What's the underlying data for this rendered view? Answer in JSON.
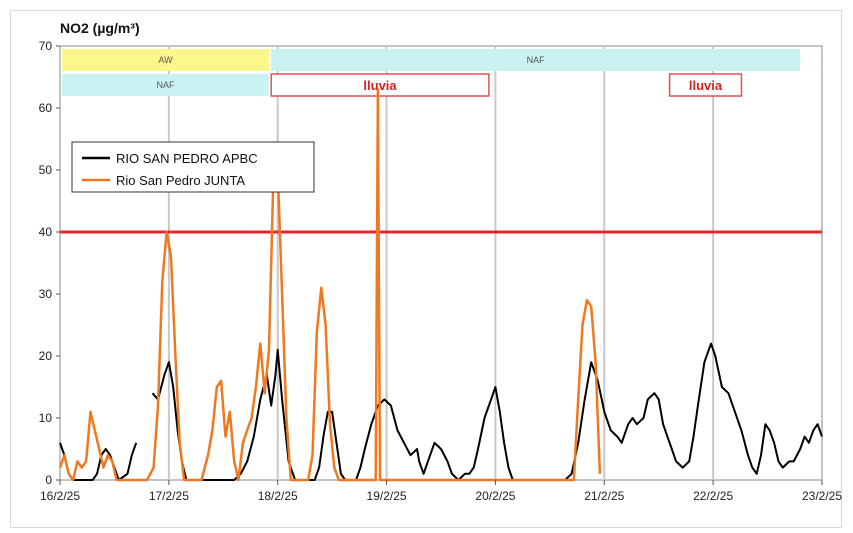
{
  "chart_data": {
    "type": "line",
    "title": "NO2  (µg/m³)",
    "xlabel": "",
    "ylabel": "",
    "ylim": [
      0,
      70
    ],
    "xlim": [
      0,
      7
    ],
    "yticks": [
      0,
      10,
      20,
      30,
      40,
      50,
      60,
      70
    ],
    "xticks": [
      {
        "x": 0,
        "label": "16/2/25"
      },
      {
        "x": 1,
        "label": "17/2/25"
      },
      {
        "x": 2,
        "label": "18/2/25"
      },
      {
        "x": 3,
        "label": "19/2/25"
      },
      {
        "x": 4,
        "label": "20/2/25"
      },
      {
        "x": 5,
        "label": "21/2/25"
      },
      {
        "x": 6,
        "label": "22/2/25"
      },
      {
        "x": 7,
        "label": "23/2/25"
      }
    ],
    "grid": "vertical",
    "legend_position": "upper-left",
    "threshold": {
      "value": 40,
      "color": "#e8242b"
    },
    "bands": [
      {
        "label": "AW",
        "x0": 0,
        "x1": 1.92,
        "row": 1,
        "color": "#fbf78a"
      },
      {
        "label": "NAF",
        "x0": 1.92,
        "x1": 6.8,
        "row": 1,
        "color": "#c9f3f3"
      },
      {
        "label": "NAF",
        "x0": 0,
        "x1": 1.92,
        "row": 2,
        "color": "#c9f3f3"
      }
    ],
    "annotations": [
      {
        "label": "lluvia",
        "x0": 1.94,
        "x1": 3.94
      },
      {
        "label": "lluvia",
        "x0": 5.6,
        "x1": 6.26
      }
    ],
    "series": [
      {
        "name": "RIO SAN PEDRO APBC",
        "color": "#000000",
        "segments": [
          [
            [
              0,
              6
            ],
            [
              0.04,
              4
            ],
            [
              0.08,
              1
            ],
            [
              0.12,
              0
            ],
            [
              0.3,
              0
            ],
            [
              0.34,
              1
            ],
            [
              0.38,
              4
            ],
            [
              0.42,
              5
            ],
            [
              0.46,
              4
            ],
            [
              0.5,
              2
            ],
            [
              0.54,
              0
            ],
            [
              0.62,
              1
            ],
            [
              0.66,
              4
            ],
            [
              0.7,
              6
            ]
          ],
          [
            [
              0.85,
              14
            ],
            [
              0.9,
              13
            ],
            [
              0.96,
              17
            ],
            [
              1.0,
              19
            ],
            [
              1.04,
              15
            ],
            [
              1.08,
              8
            ],
            [
              1.12,
              3
            ],
            [
              1.16,
              0
            ],
            [
              1.6,
              0
            ],
            [
              1.66,
              1
            ],
            [
              1.72,
              3
            ],
            [
              1.78,
              7
            ],
            [
              1.84,
              13
            ],
            [
              1.9,
              17
            ],
            [
              1.94,
              12
            ],
            [
              1.98,
              17
            ],
            [
              2.0,
              21
            ],
            [
              2.04,
              13
            ],
            [
              2.1,
              3
            ],
            [
              2.16,
              0
            ],
            [
              2.34,
              0
            ],
            [
              2.38,
              2
            ],
            [
              2.42,
              7
            ],
            [
              2.46,
              11
            ],
            [
              2.5,
              11
            ],
            [
              2.54,
              6
            ],
            [
              2.58,
              1
            ],
            [
              2.62,
              0
            ],
            [
              2.72,
              0
            ],
            [
              2.76,
              2
            ],
            [
              2.8,
              5
            ],
            [
              2.86,
              9
            ],
            [
              2.92,
              12
            ],
            [
              2.98,
              13
            ],
            [
              3.04,
              12
            ],
            [
              3.1,
              8
            ],
            [
              3.16,
              6
            ],
            [
              3.22,
              4
            ],
            [
              3.28,
              5
            ],
            [
              3.3,
              3
            ],
            [
              3.34,
              1
            ],
            [
              3.38,
              3
            ],
            [
              3.44,
              6
            ],
            [
              3.5,
              5
            ],
            [
              3.56,
              3
            ],
            [
              3.6,
              1
            ],
            [
              3.66,
              0
            ],
            [
              3.72,
              1
            ],
            [
              3.76,
              1
            ],
            [
              3.8,
              2
            ],
            [
              3.84,
              5
            ],
            [
              3.9,
              10
            ],
            [
              3.96,
              13
            ],
            [
              4.0,
              15
            ],
            [
              4.04,
              11
            ],
            [
              4.08,
              6
            ],
            [
              4.12,
              2
            ],
            [
              4.16,
              0
            ],
            [
              4.6,
              0
            ],
            [
              4.64,
              0
            ],
            [
              4.7,
              1
            ],
            [
              4.76,
              6
            ],
            [
              4.82,
              13
            ],
            [
              4.88,
              19
            ],
            [
              4.94,
              16
            ],
            [
              5.0,
              11
            ],
            [
              5.06,
              8
            ],
            [
              5.12,
              7
            ],
            [
              5.16,
              6
            ],
            [
              5.22,
              9
            ],
            [
              5.26,
              10
            ],
            [
              5.3,
              9
            ],
            [
              5.36,
              10
            ],
            [
              5.4,
              13
            ],
            [
              5.46,
              14
            ],
            [
              5.5,
              13
            ],
            [
              5.54,
              9
            ],
            [
              5.58,
              7
            ],
            [
              5.62,
              5
            ],
            [
              5.66,
              3
            ],
            [
              5.72,
              2
            ],
            [
              5.78,
              3
            ],
            [
              5.82,
              7
            ],
            [
              5.86,
              12
            ],
            [
              5.92,
              19
            ],
            [
              5.98,
              22
            ],
            [
              6.02,
              20
            ],
            [
              6.08,
              15
            ],
            [
              6.14,
              14
            ],
            [
              6.2,
              11
            ],
            [
              6.26,
              8
            ],
            [
              6.32,
              4
            ],
            [
              6.36,
              2
            ],
            [
              6.4,
              1
            ],
            [
              6.44,
              4
            ],
            [
              6.48,
              9
            ],
            [
              6.52,
              8
            ],
            [
              6.56,
              6
            ],
            [
              6.6,
              3
            ],
            [
              6.64,
              2
            ],
            [
              6.7,
              3
            ],
            [
              6.74,
              3
            ],
            [
              6.8,
              5
            ],
            [
              6.84,
              7
            ],
            [
              6.88,
              6
            ],
            [
              6.92,
              8
            ],
            [
              6.96,
              9
            ],
            [
              7.0,
              7
            ]
          ]
        ]
      },
      {
        "name": "Rio San Pedro JUNTA",
        "color": "#f07820",
        "segments": [
          [
            [
              0,
              2
            ],
            [
              0.04,
              4
            ],
            [
              0.08,
              1
            ],
            [
              0.12,
              0
            ],
            [
              0.16,
              3
            ],
            [
              0.2,
              2
            ],
            [
              0.24,
              3
            ],
            [
              0.28,
              11
            ],
            [
              0.32,
              8
            ],
            [
              0.36,
              5
            ],
            [
              0.4,
              2
            ],
            [
              0.44,
              4
            ],
            [
              0.48,
              3
            ],
            [
              0.52,
              0
            ],
            [
              0.8,
              0
            ],
            [
              0.86,
              2
            ],
            [
              0.9,
              12
            ],
            [
              0.94,
              32
            ],
            [
              0.98,
              40
            ],
            [
              1.02,
              36
            ],
            [
              1.06,
              20
            ],
            [
              1.1,
              6
            ],
            [
              1.14,
              0
            ],
            [
              1.3,
              0
            ],
            [
              1.36,
              4
            ],
            [
              1.4,
              8
            ],
            [
              1.44,
              15
            ],
            [
              1.48,
              16
            ],
            [
              1.52,
              7
            ],
            [
              1.56,
              11
            ],
            [
              1.6,
              3
            ],
            [
              1.64,
              0
            ],
            [
              1.68,
              6
            ],
            [
              1.72,
              8
            ],
            [
              1.76,
              10
            ],
            [
              1.8,
              15
            ],
            [
              1.84,
              22
            ],
            [
              1.88,
              14
            ],
            [
              1.92,
              21
            ],
            [
              1.96,
              49
            ],
            [
              2.0,
              50
            ],
            [
              2.04,
              30
            ],
            [
              2.08,
              10
            ],
            [
              2.12,
              0
            ],
            [
              2.28,
              0
            ],
            [
              2.32,
              4
            ],
            [
              2.36,
              24
            ],
            [
              2.4,
              31
            ],
            [
              2.44,
              25
            ],
            [
              2.48,
              9
            ],
            [
              2.52,
              2
            ],
            [
              2.56,
              0
            ],
            [
              2.9,
              0
            ],
            [
              2.92,
              63
            ],
            [
              2.94,
              0
            ],
            [
              4.6,
              0
            ],
            [
              4.72,
              0
            ],
            [
              4.76,
              13
            ],
            [
              4.8,
              25
            ],
            [
              4.84,
              29
            ],
            [
              4.88,
              28
            ],
            [
              4.92,
              19
            ],
            [
              4.96,
              1
            ]
          ]
        ]
      }
    ]
  }
}
